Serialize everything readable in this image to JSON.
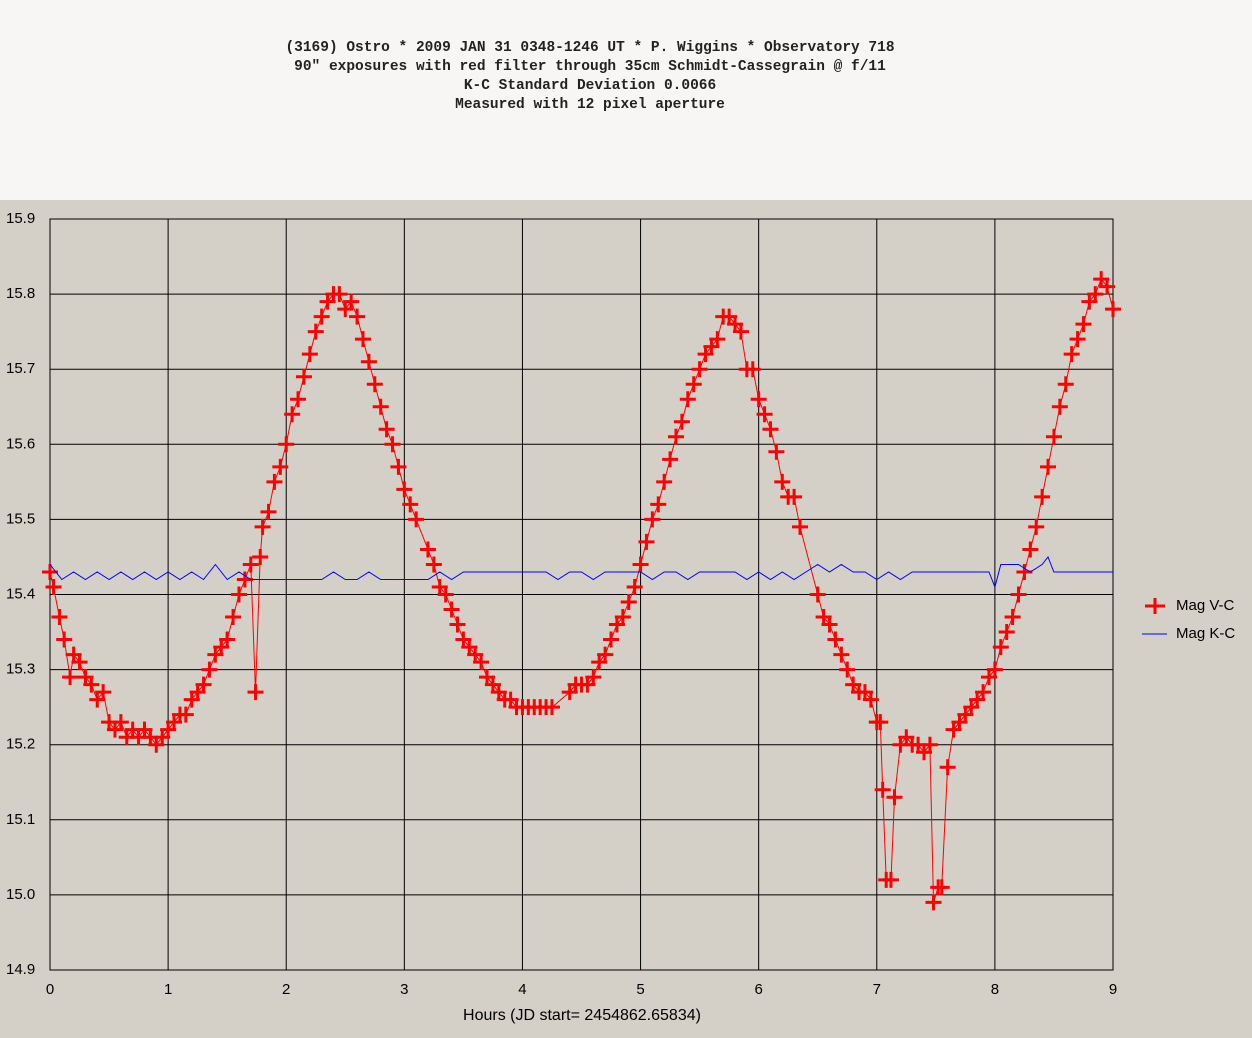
{
  "chart_data": {
    "type": "line",
    "title": "(3169) Ostro * 2009 JAN 31 0348-1246 UT * P. Wiggins * Observatory 718",
    "subtitle": [
      "90″ exposures with red filter through 35cm Schmidt-Cassegrain @ f/11",
      "K-C Standard Deviation 0.0066",
      "Measured with 12 pixel aperture"
    ],
    "x_label": "Hours (JD start= 2454862.65834)",
    "xlim": [
      0,
      9
    ],
    "xticks": [
      0,
      1,
      2,
      3,
      4,
      5,
      6,
      7,
      8,
      9
    ],
    "ylim": [
      14.9,
      15.9
    ],
    "yticks": [
      14.9,
      {
        "value": 15,
        "label": "15.0"
      },
      15.1,
      15.2,
      15.3,
      15.4,
      15.5,
      15.6,
      15.7,
      15.8,
      15.9
    ],
    "grid": true,
    "legend": "right",
    "series": [
      {
        "name": "Mag V-C",
        "color": "#ff0000",
        "marker": "plus",
        "x": [
          0.0,
          0.03,
          0.08,
          0.12,
          0.17,
          0.2,
          0.25,
          0.3,
          0.35,
          0.4,
          0.45,
          0.5,
          0.55,
          0.6,
          0.65,
          0.7,
          0.75,
          0.8,
          0.85,
          0.9,
          0.95,
          1.0,
          1.05,
          1.1,
          1.15,
          1.2,
          1.25,
          1.3,
          1.35,
          1.4,
          1.45,
          1.5,
          1.55,
          1.6,
          1.65,
          1.7,
          1.74,
          1.78,
          1.8,
          1.85,
          1.9,
          1.95,
          2.0,
          2.05,
          2.1,
          2.15,
          2.2,
          2.25,
          2.3,
          2.35,
          2.4,
          2.45,
          2.5,
          2.55,
          2.6,
          2.65,
          2.7,
          2.75,
          2.8,
          2.85,
          2.9,
          2.95,
          3.0,
          3.05,
          3.1,
          3.2,
          3.25,
          3.3,
          3.35,
          3.4,
          3.45,
          3.5,
          3.55,
          3.6,
          3.65,
          3.7,
          3.75,
          3.8,
          3.85,
          3.9,
          3.95,
          4.0,
          4.05,
          4.1,
          4.15,
          4.2,
          4.25,
          4.4,
          4.45,
          4.5,
          4.55,
          4.6,
          4.65,
          4.7,
          4.75,
          4.8,
          4.85,
          4.9,
          4.95,
          5.0,
          5.05,
          5.1,
          5.15,
          5.2,
          5.25,
          5.3,
          5.35,
          5.4,
          5.45,
          5.5,
          5.55,
          5.6,
          5.65,
          5.7,
          5.75,
          5.8,
          5.85,
          5.9,
          5.95,
          6.0,
          6.05,
          6.1,
          6.15,
          6.2,
          6.25,
          6.3,
          6.35,
          6.5,
          6.55,
          6.6,
          6.65,
          6.7,
          6.75,
          6.8,
          6.85,
          6.9,
          6.95,
          7.0,
          7.03,
          7.05,
          7.08,
          7.12,
          7.15,
          7.2,
          7.25,
          7.3,
          7.35,
          7.4,
          7.45,
          7.48,
          7.52,
          7.55,
          7.6,
          7.65,
          7.7,
          7.75,
          7.8,
          7.85,
          7.9,
          7.95,
          8.0,
          8.05,
          8.1,
          8.15,
          8.2,
          8.25,
          8.3,
          8.35,
          8.4,
          8.45,
          8.5,
          8.55,
          8.6,
          8.65,
          8.7,
          8.75,
          8.8,
          8.85,
          8.9,
          8.95,
          9.0
        ],
        "values": [
          15.43,
          15.41,
          15.37,
          15.34,
          15.29,
          15.32,
          15.31,
          15.29,
          15.28,
          15.26,
          15.27,
          15.23,
          15.22,
          15.23,
          15.21,
          15.22,
          15.21,
          15.22,
          15.21,
          15.2,
          15.21,
          15.22,
          15.23,
          15.24,
          15.24,
          15.26,
          15.27,
          15.28,
          15.3,
          15.32,
          15.33,
          15.34,
          15.37,
          15.4,
          15.42,
          15.44,
          15.27,
          15.45,
          15.49,
          15.51,
          15.55,
          15.57,
          15.6,
          15.64,
          15.66,
          15.69,
          15.72,
          15.75,
          15.77,
          15.79,
          15.8,
          15.8,
          15.78,
          15.79,
          15.77,
          15.74,
          15.71,
          15.68,
          15.65,
          15.62,
          15.6,
          15.57,
          15.54,
          15.52,
          15.5,
          15.46,
          15.44,
          15.41,
          15.4,
          15.38,
          15.36,
          15.34,
          15.33,
          15.32,
          15.31,
          15.29,
          15.28,
          15.27,
          15.26,
          15.26,
          15.25,
          15.25,
          15.25,
          15.25,
          15.25,
          15.25,
          15.25,
          15.27,
          15.28,
          15.28,
          15.28,
          15.29,
          15.31,
          15.32,
          15.34,
          15.36,
          15.37,
          15.39,
          15.41,
          15.44,
          15.47,
          15.5,
          15.52,
          15.55,
          15.58,
          15.61,
          15.63,
          15.66,
          15.68,
          15.7,
          15.72,
          15.73,
          15.74,
          15.77,
          15.77,
          15.76,
          15.75,
          15.7,
          15.7,
          15.66,
          15.64,
          15.62,
          15.59,
          15.55,
          15.53,
          15.53,
          15.49,
          15.4,
          15.37,
          15.36,
          15.34,
          15.32,
          15.3,
          15.28,
          15.27,
          15.27,
          15.26,
          15.23,
          15.23,
          15.14,
          15.02,
          15.02,
          15.13,
          15.2,
          15.21,
          15.2,
          15.2,
          15.19,
          15.2,
          14.99,
          15.01,
          15.01,
          15.17,
          15.22,
          15.23,
          15.24,
          15.25,
          15.26,
          15.27,
          15.29,
          15.3,
          15.33,
          15.35,
          15.37,
          15.4,
          15.43,
          15.46,
          15.49,
          15.53,
          15.57,
          15.61,
          15.65,
          15.68,
          15.72,
          15.74,
          15.76,
          15.79,
          15.8,
          15.82,
          15.81,
          15.78
        ]
      },
      {
        "name": "Mag K-C",
        "color": "#0000ff",
        "marker": "none",
        "x": [
          0.0,
          0.1,
          0.2,
          0.3,
          0.4,
          0.5,
          0.6,
          0.7,
          0.8,
          0.9,
          1.0,
          1.1,
          1.2,
          1.3,
          1.4,
          1.5,
          1.6,
          1.7,
          1.8,
          1.9,
          2.0,
          2.1,
          2.2,
          2.3,
          2.4,
          2.5,
          2.6,
          2.7,
          2.8,
          2.9,
          3.0,
          3.1,
          3.2,
          3.3,
          3.4,
          3.5,
          3.6,
          3.7,
          3.8,
          3.9,
          4.0,
          4.1,
          4.2,
          4.3,
          4.4,
          4.5,
          4.6,
          4.7,
          4.8,
          4.9,
          5.0,
          5.1,
          5.2,
          5.3,
          5.4,
          5.5,
          5.6,
          5.7,
          5.8,
          5.9,
          6.0,
          6.1,
          6.2,
          6.3,
          6.4,
          6.5,
          6.6,
          6.7,
          6.8,
          6.9,
          7.0,
          7.1,
          7.2,
          7.3,
          7.4,
          7.5,
          7.6,
          7.7,
          7.8,
          7.9,
          7.95,
          8.0,
          8.05,
          8.1,
          8.2,
          8.3,
          8.4,
          8.45,
          8.5,
          8.6,
          8.7,
          8.8,
          8.9,
          9.0
        ],
        "values": [
          15.44,
          15.42,
          15.43,
          15.42,
          15.43,
          15.42,
          15.43,
          15.42,
          15.43,
          15.42,
          15.43,
          15.42,
          15.43,
          15.42,
          15.44,
          15.42,
          15.43,
          15.42,
          15.42,
          15.42,
          15.42,
          15.42,
          15.42,
          15.42,
          15.43,
          15.42,
          15.42,
          15.43,
          15.42,
          15.42,
          15.42,
          15.42,
          15.42,
          15.43,
          15.42,
          15.43,
          15.43,
          15.43,
          15.43,
          15.43,
          15.43,
          15.43,
          15.43,
          15.42,
          15.43,
          15.43,
          15.42,
          15.43,
          15.43,
          15.43,
          15.43,
          15.42,
          15.43,
          15.43,
          15.42,
          15.43,
          15.43,
          15.43,
          15.43,
          15.42,
          15.43,
          15.42,
          15.43,
          15.42,
          15.43,
          15.44,
          15.43,
          15.44,
          15.43,
          15.43,
          15.42,
          15.43,
          15.42,
          15.43,
          15.43,
          15.43,
          15.43,
          15.43,
          15.43,
          15.43,
          15.43,
          15.41,
          15.44,
          15.44,
          15.44,
          15.43,
          15.44,
          15.45,
          15.43,
          15.43,
          15.43,
          15.43,
          15.43,
          15.43
        ]
      }
    ]
  }
}
